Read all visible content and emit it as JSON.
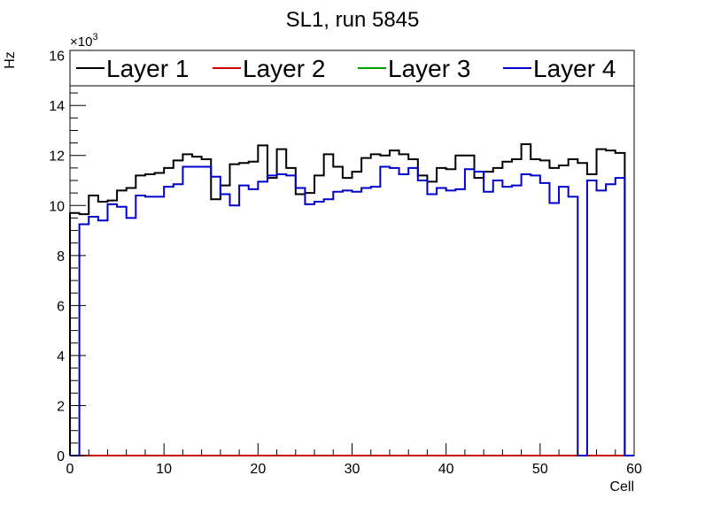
{
  "chart_data": {
    "type": "histogram-step",
    "title": "SL1, run 5845",
    "xlabel": "Cell",
    "ylabel": "Hz",
    "y_multiplier_label": "×10",
    "y_multiplier_exponent": "3",
    "xlim": [
      0,
      60
    ],
    "ylim": [
      0,
      16.2
    ],
    "x_ticks": [
      "0",
      "10",
      "20",
      "30",
      "40",
      "50",
      "60"
    ],
    "y_ticks": [
      "0",
      "2",
      "4",
      "6",
      "8",
      "10",
      "12",
      "14",
      "16"
    ],
    "grid": false,
    "legend_position": "top",
    "bin_edges_start": 0,
    "bin_width": 1,
    "series": [
      {
        "name": "Layer 1",
        "color": "#000000",
        "values": [
          9.7,
          9.65,
          10.4,
          10.15,
          10.2,
          10.6,
          10.7,
          11.2,
          11.25,
          11.3,
          11.5,
          11.8,
          12.05,
          11.95,
          11.85,
          10.25,
          10.8,
          11.65,
          11.7,
          11.75,
          12.4,
          11.1,
          12.25,
          11.5,
          10.45,
          10.5,
          11.2,
          12.05,
          11.55,
          11.1,
          11.35,
          11.9,
          12.05,
          12.0,
          12.2,
          12.05,
          11.85,
          11.2,
          10.95,
          11.5,
          11.45,
          12.0,
          12.0,
          11.1,
          11.35,
          11.5,
          11.75,
          11.85,
          12.45,
          11.85,
          11.8,
          11.5,
          11.6,
          11.85,
          11.7,
          11.25,
          12.25,
          12.2,
          12.1,
          0.0
        ],
        "bins_visible_from": 0
      },
      {
        "name": "Layer 2",
        "color": "#cc0000",
        "values": [
          0,
          0,
          0,
          0,
          0,
          0,
          0,
          0,
          0,
          0,
          0,
          0,
          0,
          0,
          0,
          0,
          0,
          0,
          0,
          0,
          0,
          0,
          0,
          0,
          0,
          0,
          0,
          0,
          0,
          0,
          0,
          0,
          0,
          0,
          0,
          0,
          0,
          0,
          0,
          0,
          0,
          0,
          0,
          0,
          0,
          0,
          0,
          0,
          0,
          0,
          0,
          0,
          0,
          0,
          0,
          0,
          0,
          0,
          0,
          0
        ]
      },
      {
        "name": "Layer 3",
        "color": "#00a000",
        "values": [
          0,
          0,
          0,
          0,
          0,
          0,
          0,
          0,
          0,
          0,
          0,
          0,
          0,
          0,
          0,
          0,
          0,
          0,
          0,
          0,
          0,
          0,
          0,
          0,
          0,
          0,
          0,
          0,
          0,
          0,
          0,
          0,
          0,
          0,
          0,
          0,
          0,
          0,
          0,
          0,
          0,
          0,
          0,
          0,
          0,
          0,
          0,
          0,
          0,
          0,
          0,
          0,
          0,
          0,
          0,
          0,
          0,
          0,
          0,
          0
        ]
      },
      {
        "name": "Layer 4",
        "color": "#0000cc",
        "values": [
          0.0,
          9.25,
          9.55,
          9.4,
          10.05,
          9.95,
          9.5,
          10.4,
          10.35,
          10.35,
          10.75,
          10.85,
          11.55,
          11.55,
          11.55,
          11.15,
          10.45,
          10.0,
          10.8,
          10.65,
          10.95,
          11.2,
          11.25,
          11.2,
          10.7,
          10.05,
          10.15,
          10.25,
          10.55,
          10.6,
          10.55,
          10.7,
          10.75,
          11.55,
          11.5,
          11.25,
          11.5,
          11.0,
          10.45,
          10.7,
          10.6,
          10.65,
          11.45,
          11.35,
          10.55,
          11.0,
          10.75,
          10.8,
          11.25,
          11.2,
          10.9,
          10.1,
          10.75,
          10.35,
          0.0,
          11.0,
          10.6,
          10.85,
          11.1,
          0.0
        ]
      }
    ]
  }
}
